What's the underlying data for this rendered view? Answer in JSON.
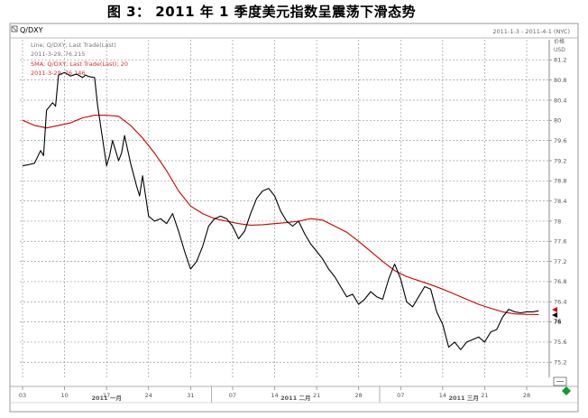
{
  "title": "图 3：   2011 年 1 季度美元指数呈震荡下滑态势",
  "header": {
    "symbol": "Q/DXY",
    "date_range": "2011-1-3 - 2011-4-1 (NYC)",
    "corner_label": "价格",
    "currency": "USD"
  },
  "legend": [
    {
      "text": "Line; Q/DXY; Last Trade(Last)",
      "color": "#777777"
    },
    {
      "text": "2011-3-29, 76.215",
      "color": "#777777"
    },
    {
      "text": "SMA; Q/DXY; Last Trade(Last); 20",
      "color": "#cc3333"
    },
    {
      "text": "2011-3-29, 76.146",
      "color": "#cc3333"
    }
  ],
  "chart_data": {
    "type": "line",
    "title": "图 3：   2011 年 1 季度美元指数呈震荡下滑态势",
    "xlabel": "",
    "ylabel": "USD",
    "ylim": [
      74.9,
      81.6
    ],
    "y_ticks": [
      81.2,
      80.8,
      80.4,
      80,
      79.6,
      79.2,
      78.8,
      78.4,
      78,
      77.6,
      77.2,
      76.8,
      76.4,
      76,
      75.6,
      75.2
    ],
    "y_tick_labels": [
      "81.2",
      "80.8",
      "80.4",
      "80",
      "79.6",
      "79.2",
      "78.8",
      "78.4",
      "78",
      "77.6",
      "77.2",
      "76.8",
      "76.4",
      "76",
      "75.6",
      "75.2"
    ],
    "x_tick_labels": [
      "03",
      "10",
      "17",
      "24",
      "31",
      "07",
      "14",
      "21",
      "28",
      "07",
      "14",
      "21",
      "28"
    ],
    "x_tick_days": [
      0,
      7,
      14,
      21,
      28,
      35,
      42,
      49,
      56,
      63,
      70,
      77,
      84
    ],
    "month_labels": [
      {
        "text": "2011 一月",
        "day": 14
      },
      {
        "text": "2011 二月",
        "day": 45.5
      },
      {
        "text": "2011 三月",
        "day": 73.5
      }
    ],
    "grid": true,
    "legend_position": "top-left",
    "last_value_marker": "76",
    "series": [
      {
        "name": "Line; Q/DXY; Last Trade(Last)",
        "color": "#000000",
        "days": [
          0,
          1,
          2,
          3,
          3.5,
          4,
          5,
          5.5,
          6,
          7,
          8,
          9,
          10,
          10.5,
          11,
          12,
          12.5,
          13,
          14,
          14.5,
          15,
          16,
          16.5,
          17,
          18,
          19,
          19.5,
          20,
          21,
          22,
          23,
          24,
          25,
          26,
          27,
          28,
          29,
          30,
          31,
          32,
          33,
          34,
          35,
          36,
          37,
          38,
          39,
          40,
          41,
          42,
          43,
          44,
          45,
          46,
          47,
          48,
          49,
          50,
          51,
          52,
          53,
          54,
          55,
          56,
          57,
          58,
          59,
          60,
          61,
          62,
          63,
          64,
          65,
          66,
          67,
          68,
          69,
          70,
          71,
          72,
          73,
          74,
          75,
          76,
          77,
          78,
          79,
          80,
          81,
          82,
          83,
          84,
          85,
          86
        ],
        "values": [
          79.1,
          79.12,
          79.15,
          79.4,
          79.3,
          80.2,
          80.35,
          80.28,
          80.9,
          80.95,
          80.88,
          80.92,
          80.85,
          80.9,
          80.87,
          80.85,
          80.3,
          79.9,
          79.1,
          79.3,
          79.6,
          79.2,
          79.35,
          79.7,
          79.15,
          78.7,
          78.5,
          78.9,
          78.1,
          78.0,
          78.05,
          77.95,
          78.15,
          77.8,
          77.4,
          77.05,
          77.2,
          77.5,
          77.9,
          78.05,
          78.1,
          78.05,
          77.9,
          77.65,
          77.8,
          78.15,
          78.45,
          78.6,
          78.65,
          78.5,
          78.2,
          78.0,
          77.9,
          78.0,
          77.75,
          77.55,
          77.4,
          77.25,
          77.05,
          76.9,
          76.7,
          76.5,
          76.55,
          76.35,
          76.45,
          76.6,
          76.5,
          76.45,
          76.85,
          77.15,
          76.85,
          76.4,
          76.3,
          76.5,
          76.7,
          76.65,
          76.2,
          75.95,
          75.5,
          75.6,
          75.45,
          75.6,
          75.65,
          75.7,
          75.6,
          75.8,
          75.85,
          76.1,
          76.25,
          76.2,
          76.18,
          76.2,
          76.2,
          76.22
        ],
        "note": ""
      },
      {
        "name": "SMA; Q/DXY; Last Trade(Last); 20",
        "color": "#cc0000",
        "days": [
          0,
          2,
          4,
          6,
          8,
          10,
          12,
          14,
          16,
          18,
          20,
          22,
          24,
          26,
          28,
          30,
          32,
          34,
          36,
          38,
          40,
          42,
          44,
          46,
          48,
          50,
          52,
          54,
          56,
          58,
          60,
          62,
          64,
          66,
          68,
          70,
          72,
          74,
          76,
          78,
          80,
          82,
          84,
          86
        ],
        "values": [
          80.0,
          79.9,
          79.85,
          79.9,
          79.95,
          80.05,
          80.1,
          80.1,
          80.08,
          79.9,
          79.65,
          79.35,
          79.0,
          78.6,
          78.3,
          78.15,
          78.05,
          78.0,
          77.95,
          77.92,
          77.93,
          77.95,
          77.97,
          78.0,
          78.05,
          78.02,
          77.9,
          77.78,
          77.6,
          77.4,
          77.2,
          77.02,
          76.9,
          76.82,
          76.74,
          76.65,
          76.55,
          76.45,
          76.35,
          76.27,
          76.2,
          76.16,
          76.15,
          76.146
        ]
      }
    ]
  }
}
